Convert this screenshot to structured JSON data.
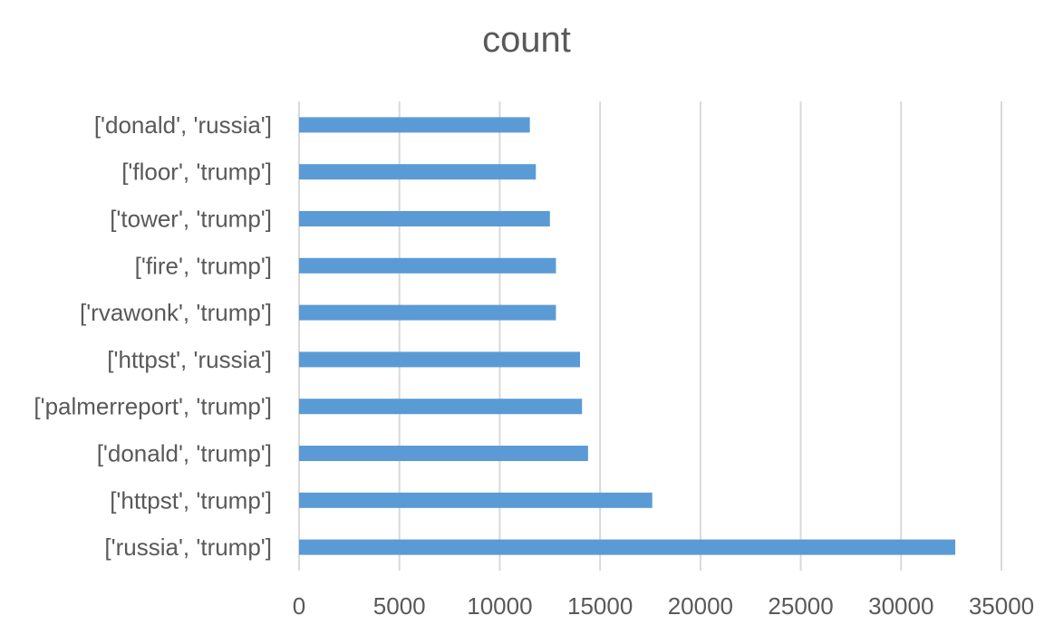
{
  "chart_data": {
    "type": "bar",
    "orientation": "horizontal",
    "title": "count",
    "categories": [
      "['donald', 'russia']",
      "['floor', 'trump']",
      "['tower', 'trump']",
      "['fire', 'trump']",
      "['rvawonk', 'trump']",
      "['httpst', 'russia']",
      "['palmerreport', 'trump']",
      "['donald', 'trump']",
      "['httpst', 'trump']",
      "['russia', 'trump']"
    ],
    "series": [
      {
        "values": [
          11500,
          11800,
          12500,
          12800,
          12800,
          14000,
          14100,
          14400,
          17600,
          32700
        ],
        "color": "#5B9BD5"
      }
    ],
    "xlim": [
      0,
      35000
    ],
    "xticks": [
      0,
      5000,
      10000,
      15000,
      20000,
      25000,
      30000,
      35000
    ],
    "xlabel": "",
    "ylabel": "",
    "grid": true,
    "gridColor": "#D9D9D9",
    "legend": "none"
  }
}
